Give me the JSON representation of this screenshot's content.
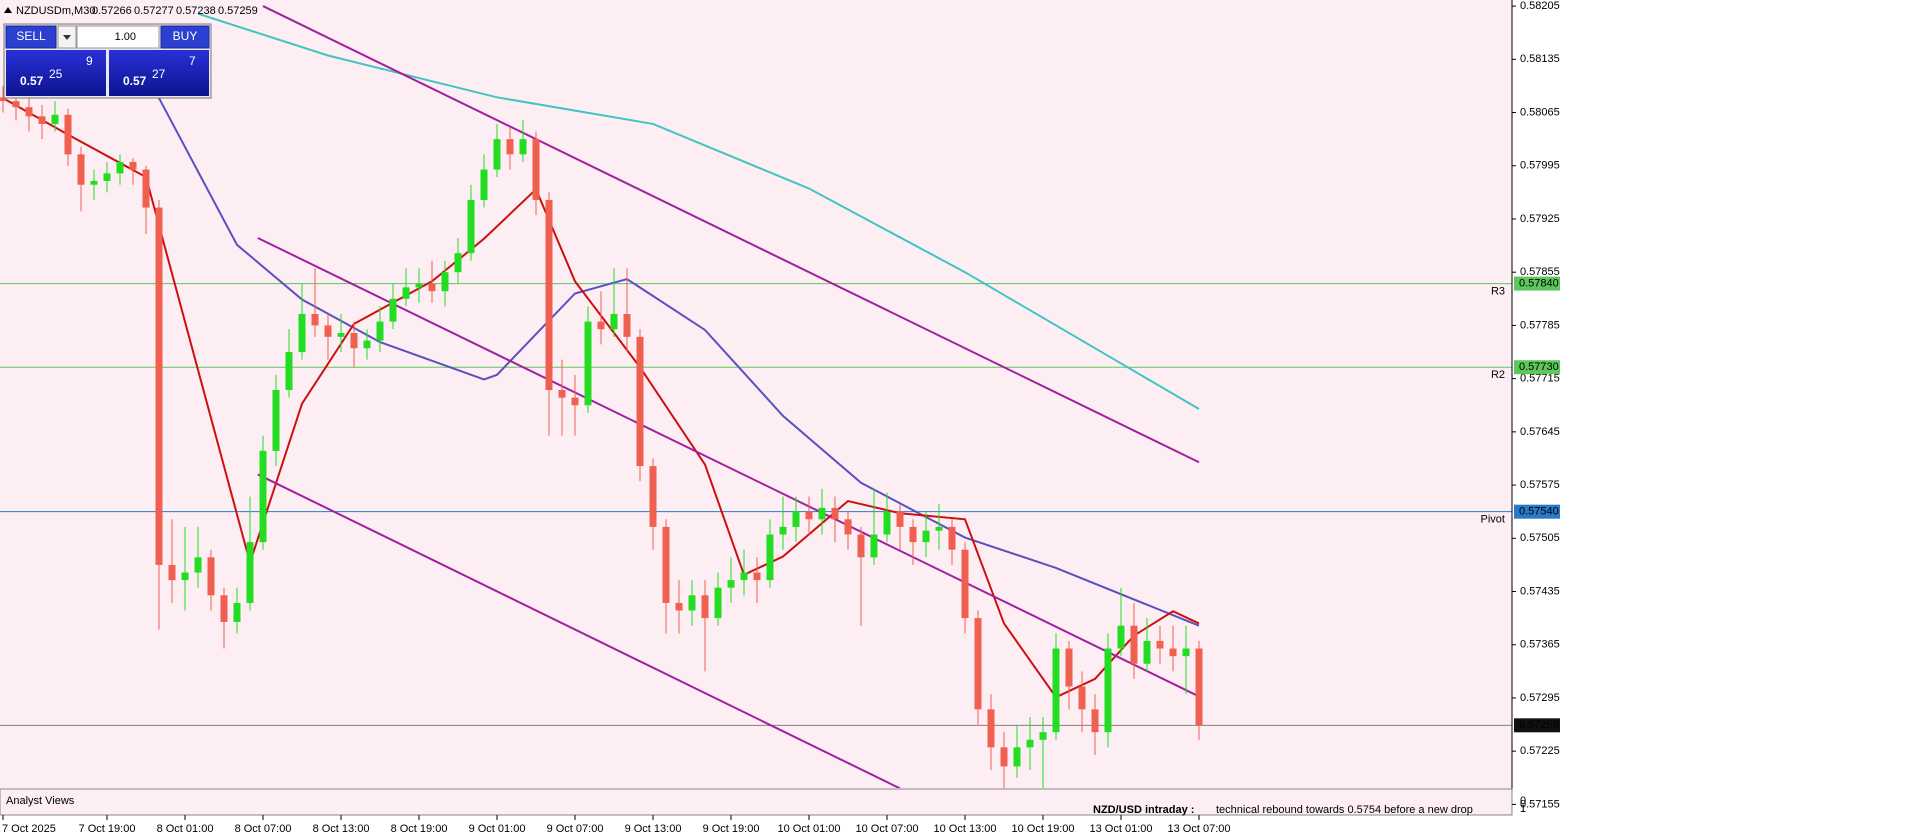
{
  "symbol_header": {
    "symbol": "NZDUSDm,M30",
    "ohlc": [
      "0.57266",
      "0.57277",
      "0.57238",
      "0.57259"
    ]
  },
  "trade_panel": {
    "sell_button": "SELL",
    "buy_button": "BUY",
    "lot": "1.00",
    "sell_price": {
      "prefix": "0.57",
      "big": "25",
      "small": "9"
    },
    "buy_price": {
      "prefix": "0.57",
      "big": "27",
      "small": "7"
    }
  },
  "analyst_panel": {
    "title": "Analyst Views",
    "heading": "NZD/USD intraday :",
    "comment": "technical rebound towards 0.5754 before a new drop",
    "scale": [
      0,
      1
    ]
  },
  "chart_data": {
    "type": "candlestick",
    "categories": [
      "7 Oct 2025",
      null,
      null,
      null,
      null,
      null,
      null,
      null,
      "7 Oct 19:00",
      null,
      null,
      null,
      null,
      null,
      "8 Oct 01:00",
      null,
      null,
      null,
      null,
      null,
      "8 Oct 07:00",
      null,
      null,
      null,
      null,
      null,
      "8 Oct 13:00",
      null,
      null,
      null,
      null,
      null,
      "8 Oct 19:00",
      null,
      null,
      null,
      null,
      null,
      "9 Oct 01:00",
      null,
      null,
      null,
      null,
      null,
      "9 Oct 07:00",
      null,
      null,
      null,
      null,
      null,
      "9 Oct 13:00",
      null,
      null,
      null,
      null,
      null,
      "9 Oct 19:00",
      null,
      null,
      null,
      null,
      null,
      "10 Oct 01:00",
      null,
      null,
      null,
      null,
      null,
      "10 Oct 07:00",
      null,
      null,
      null,
      null,
      null,
      "10 Oct 13:00",
      null,
      null,
      null,
      null,
      null,
      "10 Oct 19:00",
      null,
      null,
      null,
      null,
      null,
      "13 Oct 01:00",
      null,
      null,
      null,
      null,
      null,
      "13 Oct 07:00"
    ],
    "open": [
      0.58085,
      0.5808,
      0.58072,
      0.5806,
      0.5805,
      0.58062,
      0.5801,
      0.5797,
      0.57975,
      0.57985,
      0.58,
      0.5799,
      0.5794,
      0.5747,
      0.5745,
      0.5746,
      0.5748,
      0.5743,
      0.57395,
      0.5742,
      0.575,
      0.5762,
      0.577,
      0.5775,
      0.578,
      0.57785,
      0.5777,
      0.57775,
      0.57755,
      0.57765,
      0.5779,
      0.5782,
      0.57835,
      0.5784,
      0.5783,
      0.57855,
      0.5788,
      0.5795,
      0.5799,
      0.5803,
      0.5801,
      0.5803,
      0.5795,
      0.577,
      0.5769,
      0.5768,
      0.5779,
      0.5778,
      0.578,
      0.5777,
      0.576,
      0.5752,
      0.5742,
      0.5741,
      0.5743,
      0.574,
      0.5744,
      0.5745,
      0.5746,
      0.5745,
      0.5751,
      0.5752,
      0.5754,
      0.5753,
      0.57545,
      0.5753,
      0.5751,
      0.5748,
      0.5751,
      0.5754,
      0.5752,
      0.575,
      0.57515,
      0.5752,
      0.5749,
      0.574,
      0.5728,
      0.5723,
      0.57205,
      0.5723,
      0.5724,
      0.5725,
      0.5736,
      0.5731,
      0.5728,
      0.5725,
      0.5736,
      0.5739,
      0.5734,
      0.5737,
      0.5736,
      0.5735,
      0.5736
    ],
    "high": [
      0.581,
      0.58095,
      0.5809,
      0.58075,
      0.5808,
      0.5807,
      0.5802,
      0.5799,
      0.58,
      0.5801,
      0.58005,
      0.57995,
      0.5795,
      0.5753,
      0.5752,
      0.5752,
      0.5749,
      0.5744,
      0.5744,
      0.5756,
      0.5764,
      0.5772,
      0.5778,
      0.5784,
      0.5786,
      0.578,
      0.578,
      0.5779,
      0.5778,
      0.5781,
      0.5784,
      0.5786,
      0.5786,
      0.5787,
      0.5787,
      0.579,
      0.5797,
      0.5801,
      0.5805,
      0.58045,
      0.58055,
      0.5804,
      0.5796,
      0.5774,
      0.5772,
      0.5781,
      0.5783,
      0.5786,
      0.5786,
      0.5778,
      0.5761,
      0.5753,
      0.5745,
      0.5745,
      0.5745,
      0.5746,
      0.5748,
      0.5749,
      0.5748,
      0.5753,
      0.5756,
      0.5756,
      0.5756,
      0.5757,
      0.5756,
      0.5754,
      0.5752,
      0.5757,
      0.57565,
      0.5755,
      0.5753,
      0.5754,
      0.5755,
      0.5753,
      0.575,
      0.5741,
      0.573,
      0.5725,
      0.5726,
      0.5727,
      0.5727,
      0.5738,
      0.5737,
      0.5733,
      0.573,
      0.5738,
      0.5744,
      0.5742,
      0.574,
      0.5739,
      0.5739,
      0.5739,
      0.5737
    ],
    "low": [
      0.58065,
      0.58055,
      0.5804,
      0.5803,
      0.5804,
      0.57995,
      0.57935,
      0.5795,
      0.5796,
      0.5797,
      0.5797,
      0.57905,
      0.57385,
      0.5742,
      0.5741,
      0.5744,
      0.5741,
      0.5736,
      0.5738,
      0.5741,
      0.5749,
      0.576,
      0.5769,
      0.5774,
      0.5777,
      0.5774,
      0.5775,
      0.5773,
      0.5774,
      0.5775,
      0.5778,
      0.5781,
      0.57815,
      0.57815,
      0.5781,
      0.5784,
      0.5787,
      0.5794,
      0.5798,
      0.5799,
      0.58,
      0.5793,
      0.5764,
      0.5764,
      0.5764,
      0.5767,
      0.5776,
      0.5777,
      0.5775,
      0.5758,
      0.5749,
      0.5738,
      0.5738,
      0.5739,
      0.5733,
      0.5739,
      0.5742,
      0.5743,
      0.5742,
      0.5744,
      0.5749,
      0.575,
      0.5751,
      0.5751,
      0.575,
      0.5749,
      0.5739,
      0.5747,
      0.575,
      0.5749,
      0.5747,
      0.5748,
      0.5749,
      0.5747,
      0.5738,
      0.5726,
      0.572,
      0.5717,
      0.5719,
      0.572,
      0.5716,
      0.5724,
      0.5728,
      0.5725,
      0.5722,
      0.5723,
      0.5735,
      0.5732,
      0.5733,
      0.5734,
      0.5733,
      0.573,
      0.5724
    ],
    "close": [
      0.5808,
      0.58072,
      0.5806,
      0.5805,
      0.58062,
      0.5801,
      0.5797,
      0.57975,
      0.57985,
      0.58,
      0.5799,
      0.5794,
      0.5747,
      0.5745,
      0.5746,
      0.5748,
      0.5743,
      0.57395,
      0.5742,
      0.575,
      0.5762,
      0.577,
      0.5775,
      0.578,
      0.57785,
      0.5777,
      0.57775,
      0.57755,
      0.57765,
      0.5779,
      0.5782,
      0.57835,
      0.5784,
      0.5783,
      0.57855,
      0.5788,
      0.5795,
      0.5799,
      0.5803,
      0.5801,
      0.5803,
      0.5795,
      0.577,
      0.5769,
      0.5768,
      0.5779,
      0.5778,
      0.578,
      0.5777,
      0.576,
      0.5752,
      0.5742,
      0.5741,
      0.5743,
      0.574,
      0.5744,
      0.5745,
      0.5746,
      0.5745,
      0.5751,
      0.5752,
      0.5754,
      0.5753,
      0.57545,
      0.5753,
      0.5751,
      0.5748,
      0.5751,
      0.5754,
      0.5752,
      0.575,
      0.57515,
      0.5752,
      0.5749,
      0.574,
      0.5728,
      0.5723,
      0.57205,
      0.5723,
      0.5724,
      0.5725,
      0.5736,
      0.5731,
      0.5728,
      0.5725,
      0.5736,
      0.5739,
      0.5734,
      0.5737,
      0.5736,
      0.5735,
      0.5736,
      0.57259
    ],
    "up_color": "#22dd22",
    "down_color": "#f06050",
    "lines": [
      {
        "color": "#40c4c4",
        "x": [
          15,
          25,
          38,
          50,
          62,
          74,
          85,
          92
        ],
        "values": [
          0.58195,
          0.5814,
          0.58085,
          0.5805,
          0.57965,
          0.57855,
          0.57745,
          0.57675
        ]
      },
      {
        "color": "#5a50c0",
        "x": [
          12,
          18,
          23,
          29,
          37,
          38,
          44,
          48,
          54,
          60,
          66,
          74,
          81,
          92
        ],
        "values": [
          0.58084,
          0.57891,
          0.57819,
          0.57763,
          0.57714,
          0.5772,
          0.57827,
          0.57846,
          0.57779,
          0.57666,
          0.57578,
          0.57506,
          0.57466,
          0.5739
        ]
      },
      {
        "color": "#cc1010",
        "x": [
          0,
          5,
          11,
          19,
          23,
          27,
          33,
          37,
          41,
          44,
          49,
          54,
          57,
          60,
          65,
          69,
          74,
          77,
          81,
          84,
          87,
          90,
          92
        ],
        "values": [
          0.58084,
          0.58036,
          0.5798,
          0.57473,
          0.57682,
          0.57787,
          0.57843,
          0.57899,
          0.57964,
          0.57843,
          0.5773,
          0.57602,
          0.57457,
          0.57481,
          0.57554,
          0.57538,
          0.5753,
          0.57393,
          0.57296,
          0.5732,
          0.57377,
          0.57409,
          0.57393
        ]
      },
      {
        "color": "#a020a0",
        "x": [
          20,
          92
        ],
        "values": [
          0.58205,
          0.57605
        ]
      },
      {
        "color": "#a020a0",
        "x": [
          19.6,
          92
        ],
        "values": [
          0.579,
          0.57297
        ]
      },
      {
        "color": "#a020a0",
        "x": [
          19.6,
          69
        ],
        "values": [
          0.57589,
          0.57176
        ]
      }
    ],
    "levels": [
      {
        "name": "R3",
        "value": 0.5784,
        "label": "0.57840",
        "color": "#5cc85c"
      },
      {
        "name": "R2",
        "value": 0.5773,
        "label": "0.57730",
        "color": "#5cc85c"
      },
      {
        "name": "Pivot",
        "value": 0.5754,
        "label": "0.57540",
        "color": "#2a78c8"
      },
      {
        "value": 0.57259,
        "label": "0.57259",
        "color": "#111111"
      }
    ],
    "ylim": [
      0.57145,
      0.58213
    ],
    "yticks": [
      0.58205,
      0.58135,
      0.58065,
      0.57995,
      0.57925,
      0.57855,
      0.57785,
      0.57715,
      0.57645,
      0.57575,
      0.57505,
      0.57435,
      0.57365,
      0.57295,
      0.57225,
      0.57155
    ]
  }
}
